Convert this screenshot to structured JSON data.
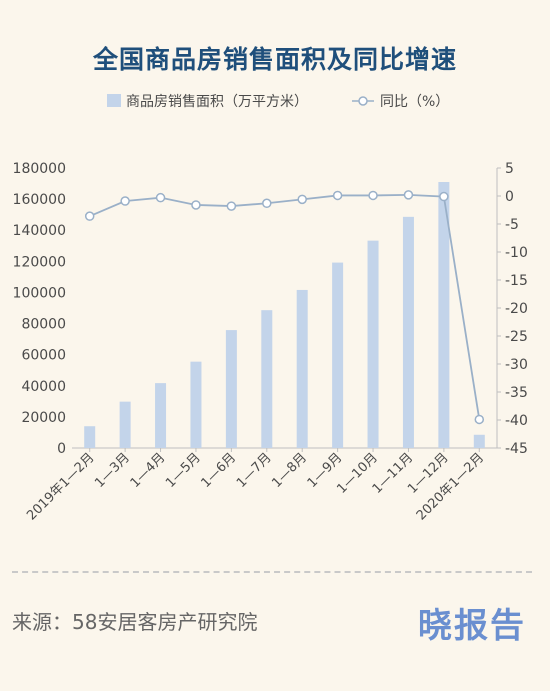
{
  "chart_data": {
    "type": "bar",
    "title": "全国商品房销售面积及同比增速",
    "categories": [
      "2019年1—2月",
      "1—3月",
      "1—4月",
      "1—5月",
      "1—6月",
      "1—7月",
      "1—8月",
      "1—9月",
      "1—10月",
      "1—11月",
      "1—12月",
      "2020年1—2月"
    ],
    "series": [
      {
        "name": "商品房销售面积（万平方米）",
        "type": "bar",
        "axis": "left",
        "values": [
          14000,
          29800,
          41700,
          55500,
          75800,
          88600,
          101600,
          119200,
          133300,
          148600,
          171000,
          8500
        ]
      },
      {
        "name": "同比（%）",
        "type": "line",
        "axis": "right",
        "values": [
          -3.6,
          -0.9,
          -0.3,
          -1.6,
          -1.8,
          -1.3,
          -0.6,
          0.1,
          0.1,
          0.2,
          -0.1,
          -39.9
        ]
      }
    ],
    "ylim_left": [
      0,
      180000
    ],
    "yticks_left": [
      "0",
      "20000",
      "40000",
      "60000",
      "80000",
      "100000",
      "120000",
      "140000",
      "160000",
      "180000"
    ],
    "ylim_right": [
      -45,
      5
    ],
    "yticks_right": [
      "5",
      "0",
      "-5",
      "-10",
      "-15",
      "-20",
      "-25",
      "-30",
      "-35",
      "-40",
      "-45"
    ],
    "legend_position": "top",
    "colors": {
      "bar": "#c3d4ea",
      "line": "#9ab0c8",
      "marker_fill": "#ffffff",
      "title": "#1f4f7b"
    },
    "grid": false
  },
  "legend": {
    "bar_label": "商品房销售面积（万平方米）",
    "line_label": "同比（%）"
  },
  "footer": {
    "source": "来源：58安居客房产研究院",
    "logo": "晓报告"
  }
}
